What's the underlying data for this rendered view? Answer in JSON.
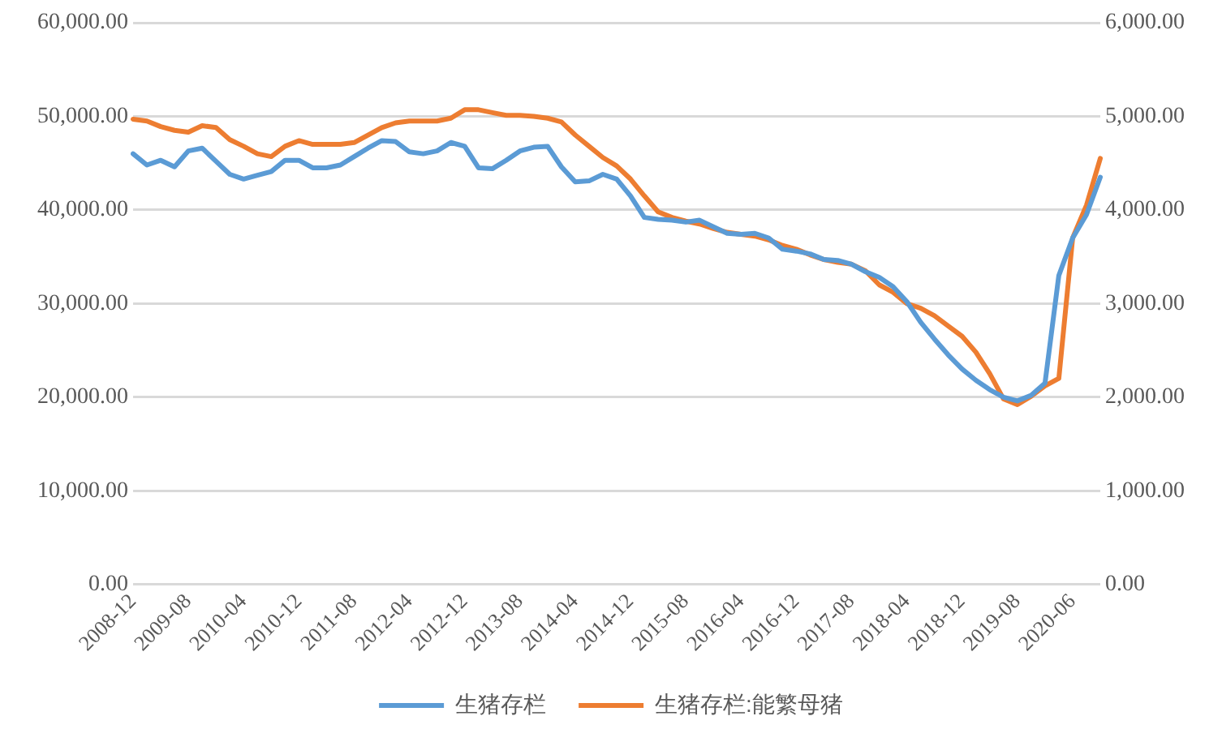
{
  "chart_data": {
    "type": "line",
    "categories": [
      "2008-12",
      null,
      null,
      null,
      "2009-08",
      null,
      null,
      null,
      "2010-04",
      null,
      null,
      null,
      "2010-12",
      null,
      null,
      null,
      "2011-08",
      null,
      null,
      null,
      "2012-04",
      null,
      null,
      null,
      "2012-12",
      null,
      null,
      null,
      "2013-08",
      null,
      null,
      null,
      "2014-04",
      null,
      null,
      null,
      "2014-12",
      null,
      null,
      null,
      "2015-08",
      null,
      null,
      null,
      "2016-04",
      null,
      null,
      null,
      "2016-12",
      null,
      null,
      null,
      "2017-08",
      null,
      null,
      null,
      "2018-04",
      null,
      null,
      null,
      "2018-12",
      null,
      null,
      null,
      "2019-08",
      null,
      null,
      null,
      "2020-06",
      null,
      null
    ],
    "series": [
      {
        "name": "生猪存栏",
        "color": "#5b9bd5",
        "values": [
          46000,
          44800,
          45300,
          44600,
          46300,
          46600,
          45200,
          43800,
          43300,
          43700,
          44100,
          45300,
          45300,
          44500,
          44500,
          44800,
          45700,
          46600,
          47400,
          47300,
          46200,
          46000,
          46300,
          47200,
          46800,
          44500,
          44400,
          45300,
          46300,
          46700,
          46800,
          44600,
          43000,
          43100,
          43800,
          43300,
          41500,
          39200,
          39000,
          38900,
          38700,
          38900,
          38200,
          37500,
          37400,
          37500,
          37000,
          35800,
          35600,
          35300,
          34700,
          34600,
          34200,
          33400,
          32800,
          31800,
          30200,
          28000,
          26200,
          24500,
          23000,
          21800,
          20800,
          20000,
          19600,
          20200,
          21500,
          33000,
          37000,
          39500,
          43500
        ]
      },
      {
        "name": "生猪存栏:能繁母猪",
        "color": "#ed7d31",
        "axis": "y2",
        "values": [
          4970,
          4950,
          4890,
          4850,
          4830,
          4900,
          4880,
          4750,
          4680,
          4600,
          4570,
          4680,
          4740,
          4700,
          4700,
          4700,
          4720,
          4800,
          4880,
          4930,
          4950,
          4950,
          4950,
          4980,
          5070,
          5070,
          5040,
          5010,
          5010,
          5000,
          4980,
          4940,
          4800,
          4680,
          4560,
          4470,
          4330,
          4150,
          3980,
          3920,
          3880,
          3850,
          3800,
          3760,
          3740,
          3720,
          3680,
          3620,
          3580,
          3520,
          3470,
          3440,
          3420,
          3350,
          3200,
          3120,
          3000,
          2950,
          2870,
          2760,
          2650,
          2480,
          2250,
          1980,
          1920,
          2010,
          2120,
          2200,
          3700,
          4050,
          4550
        ]
      }
    ],
    "ylim": [
      0,
      60000
    ],
    "yticks": [
      {
        "value": 0,
        "label": "0.00"
      },
      {
        "value": 10000,
        "label": "10,000.00"
      },
      {
        "value": 20000,
        "label": "20,000.00"
      },
      {
        "value": 30000,
        "label": "30,000.00"
      },
      {
        "value": 40000,
        "label": "40,000.00"
      },
      {
        "value": 50000,
        "label": "50,000.00"
      },
      {
        "value": 60000,
        "label": "60,000.00"
      }
    ],
    "y2lim": [
      0,
      6000
    ],
    "y2ticks": [
      {
        "value": 0,
        "label": "0.00"
      },
      {
        "value": 1000,
        "label": "1,000.00"
      },
      {
        "value": 2000,
        "label": "2,000.00"
      },
      {
        "value": 3000,
        "label": "3,000.00"
      },
      {
        "value": 4000,
        "label": "4,000.00"
      },
      {
        "value": 5000,
        "label": "5,000.00"
      },
      {
        "value": 6000,
        "label": "6,000.00"
      }
    ],
    "grid": "y",
    "legend": "bottom",
    "marker": "none",
    "line_style": "solid"
  }
}
